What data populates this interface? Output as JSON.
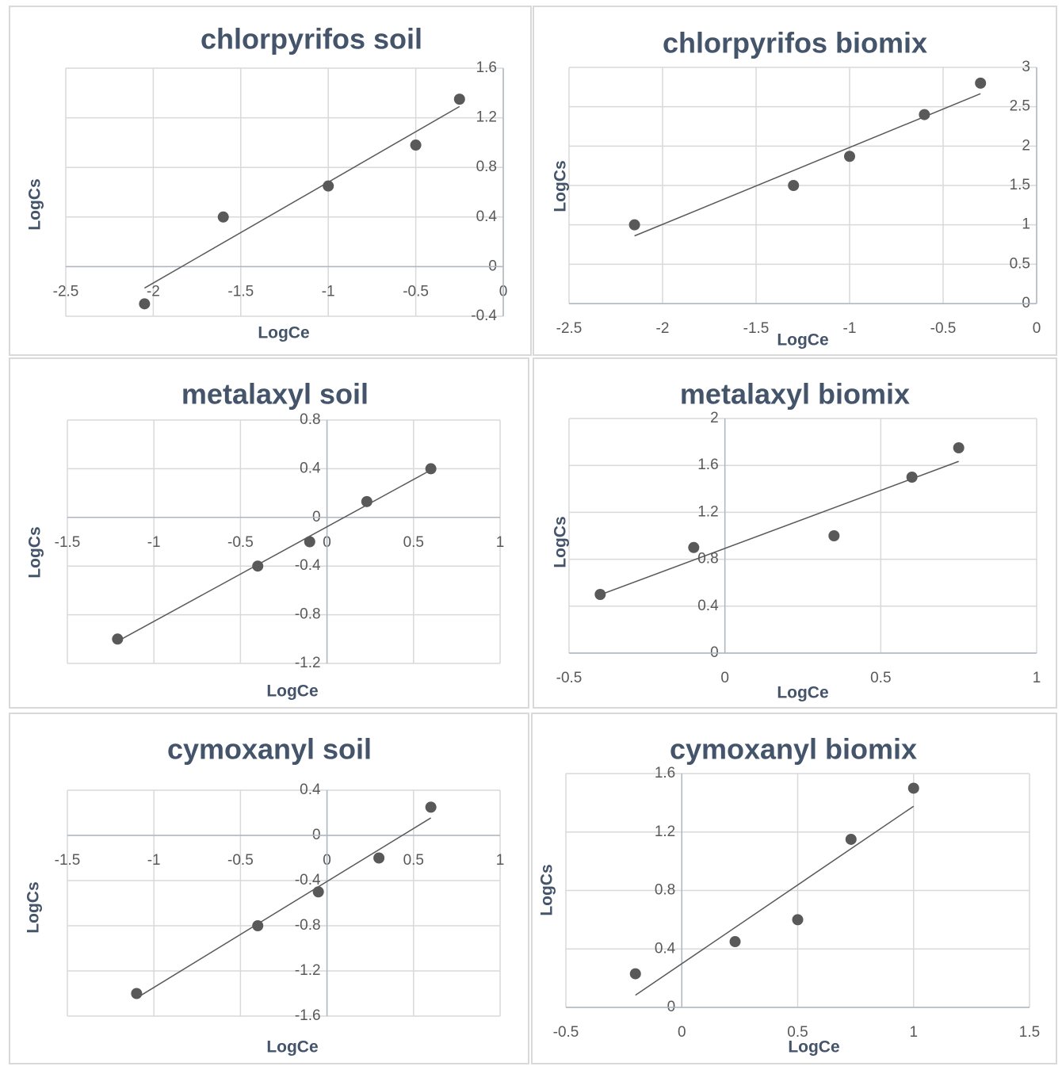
{
  "chart_data": [
    {
      "type": "scatter",
      "title": "chlorpyrifos soil",
      "x_label": "LogCe",
      "y_label": "LogCs",
      "x": [
        -2.05,
        -1.6,
        -1.0,
        -0.5,
        -0.25
      ],
      "values": [
        -0.3,
        0.4,
        0.65,
        0.98,
        1.35
      ],
      "color": "#595959",
      "trendline": true,
      "grid": true,
      "xlim": [
        -2.5,
        0
      ],
      "xticks": [
        -2.5,
        -2,
        -1.5,
        -1,
        -0.5,
        0
      ],
      "ylim": [
        -0.4,
        1.6
      ],
      "yticks": [
        -0.4,
        0,
        0.4,
        0.8,
        1.2,
        1.6
      ]
    },
    {
      "type": "scatter",
      "title": "chlorpyrifos biomix",
      "x_label": "LogCe",
      "y_label": "LogCs",
      "x": [
        -2.15,
        -1.3,
        -1.0,
        -0.6,
        -0.3
      ],
      "values": [
        1.0,
        1.5,
        1.87,
        2.4,
        2.8
      ],
      "color": "#595959",
      "trendline": true,
      "grid": true,
      "xlim": [
        -2.5,
        0
      ],
      "xticks": [
        -2.5,
        -2,
        -1.5,
        -1,
        -0.5,
        0
      ],
      "ylim": [
        0,
        3
      ],
      "yticks": [
        0,
        0.5,
        1,
        1.5,
        2,
        2.5,
        3
      ]
    },
    {
      "type": "scatter",
      "title": "metalaxyl soil",
      "x_label": "LogCe",
      "y_label": "LogCs",
      "x": [
        -1.21,
        -0.4,
        -0.1,
        0.23,
        0.6
      ],
      "values": [
        -1.0,
        -0.4,
        -0.2,
        0.13,
        0.4
      ],
      "color": "#595959",
      "trendline": true,
      "grid": true,
      "xlim": [
        -1.5,
        1
      ],
      "xticks": [
        -1.5,
        -1,
        -0.5,
        0,
        0.5,
        1
      ],
      "ylim": [
        -1.2,
        0.8
      ],
      "yticks": [
        -1.2,
        -0.8,
        -0.4,
        0,
        0.4,
        0.8
      ]
    },
    {
      "type": "scatter",
      "title": "metalaxyl biomix",
      "x_label": "LogCe",
      "y_label": "LogCs",
      "x": [
        -0.4,
        -0.1,
        0.35,
        0.6,
        0.75
      ],
      "values": [
        0.5,
        0.9,
        1.0,
        1.5,
        1.75
      ],
      "color": "#595959",
      "trendline": true,
      "grid": true,
      "xlim": [
        -0.5,
        1
      ],
      "xticks": [
        -0.5,
        0,
        0.5,
        1
      ],
      "ylim": [
        0,
        2
      ],
      "yticks": [
        0,
        0.4,
        0.8,
        1.2,
        1.6,
        2
      ]
    },
    {
      "type": "scatter",
      "title": "cymoxanyl soil",
      "x_label": "LogCe",
      "y_label": "LogCs",
      "x": [
        -1.1,
        -0.4,
        -0.05,
        0.3,
        0.6
      ],
      "values": [
        -1.4,
        -0.8,
        -0.5,
        -0.2,
        0.25
      ],
      "color": "#595959",
      "trendline": true,
      "grid": true,
      "xlim": [
        -1.5,
        1
      ],
      "xticks": [
        -1.5,
        -1,
        -0.5,
        0,
        0.5,
        1
      ],
      "ylim": [
        -1.6,
        0.4
      ],
      "yticks": [
        -1.6,
        -1.2,
        -0.8,
        -0.4,
        0,
        0.4
      ]
    },
    {
      "type": "scatter",
      "title": "cymoxanyl biomix",
      "x_label": "LogCe",
      "y_label": "LogCs",
      "x": [
        -0.2,
        0.23,
        0.5,
        0.73,
        1.0
      ],
      "values": [
        0.23,
        0.45,
        0.6,
        1.15,
        1.5
      ],
      "color": "#595959",
      "trendline": true,
      "grid": true,
      "xlim": [
        -0.5,
        1.5
      ],
      "xticks": [
        -0.5,
        0,
        0.5,
        1,
        1.5
      ],
      "ylim": [
        0,
        1.6
      ],
      "yticks": [
        0,
        0.4,
        0.8,
        1.2,
        1.6
      ]
    }
  ]
}
